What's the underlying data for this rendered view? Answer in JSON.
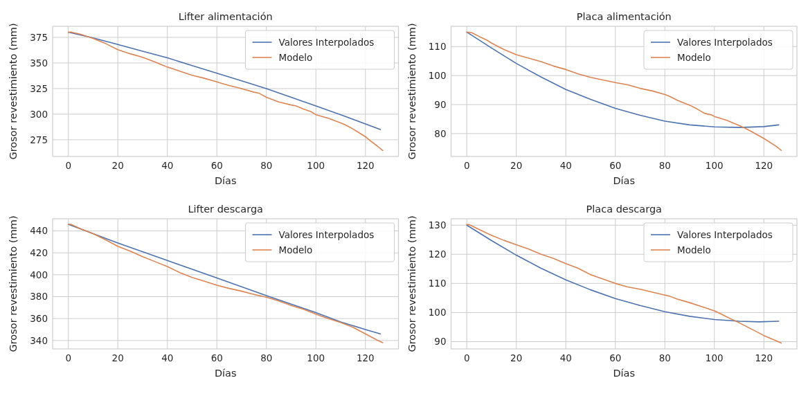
{
  "chart_data": [
    {
      "type": "line",
      "title": "Lifter alimentación",
      "xlabel": "Días",
      "ylabel": "Grosor revestimiento (mm)",
      "xlim": [
        -6.35,
        133.35
      ],
      "ylim": [
        258.7,
        385.8
      ],
      "xticks": [
        0,
        20,
        40,
        60,
        80,
        100,
        120
      ],
      "yticks": [
        275,
        300,
        325,
        350,
        375
      ],
      "grid": true,
      "legend": "top right",
      "series": [
        {
          "name": "Valores Interpolados",
          "color": "#4c72b0",
          "x": [
            0,
            10,
            20,
            30,
            40,
            50,
            60,
            70,
            80,
            90,
            100,
            110,
            120,
            126
          ],
          "values": [
            380,
            374.5,
            368,
            361.5,
            355,
            347.5,
            340,
            332.5,
            325,
            316.5,
            308,
            299.5,
            290.5,
            285
          ]
        },
        {
          "name": "Modelo",
          "color": "#dd8452",
          "x": [
            0,
            1,
            5,
            10,
            15,
            20,
            25,
            30,
            35,
            38,
            40,
            42,
            45,
            50,
            55,
            60,
            62,
            65,
            70,
            75,
            77,
            80,
            85,
            90,
            92,
            95,
            98,
            100,
            105,
            110,
            112,
            115,
            118,
            120,
            122,
            125,
            127
          ],
          "values": [
            380,
            380.2,
            378,
            374,
            369,
            363,
            359,
            355.5,
            351,
            348,
            346,
            344.5,
            342,
            338,
            335,
            331.5,
            330,
            328,
            325,
            321.5,
            320.5,
            316.5,
            312,
            309,
            308,
            305,
            302.5,
            299.5,
            296,
            291.5,
            289.5,
            285.5,
            281,
            278,
            274,
            268.5,
            264.5
          ]
        }
      ]
    },
    {
      "type": "line",
      "title": "Placa alimentación",
      "xlabel": "Días",
      "ylabel": "Grosor revestimiento (mm)",
      "xlim": [
        -6.35,
        133.35
      ],
      "ylim": [
        72.1,
        117.0
      ],
      "xticks": [
        0,
        20,
        40,
        60,
        80,
        100,
        120
      ],
      "yticks": [
        80,
        90,
        100,
        110
      ],
      "grid": true,
      "legend": "top right",
      "series": [
        {
          "name": "Valores Interpolados",
          "color": "#4c72b0",
          "x": [
            0,
            10,
            20,
            30,
            40,
            50,
            60,
            70,
            80,
            90,
            100,
            110,
            120,
            126
          ],
          "values": [
            115,
            109.5,
            104.2,
            99.5,
            95.2,
            91.8,
            88.7,
            86.3,
            84.3,
            83,
            82.3,
            82.1,
            82.4,
            83
          ]
        },
        {
          "name": "Modelo",
          "color": "#dd8452",
          "x": [
            0,
            2,
            5,
            8,
            10,
            15,
            20,
            25,
            30,
            35,
            40,
            45,
            50,
            55,
            60,
            65,
            70,
            75,
            80,
            82,
            85,
            90,
            93,
            96,
            99,
            100,
            105,
            110,
            112,
            115,
            120,
            125,
            127
          ],
          "values": [
            115,
            114.8,
            113.5,
            112.3,
            111.2,
            109,
            107.2,
            106,
            104.8,
            103.3,
            102.1,
            100.6,
            99.4,
            98.5,
            97.6,
            96.8,
            95.6,
            94.7,
            93.5,
            92.8,
            91.5,
            89.8,
            88.5,
            87,
            86.4,
            85.9,
            84.6,
            82.8,
            82,
            80.7,
            78.3,
            75.6,
            74.2
          ]
        }
      ]
    },
    {
      "type": "line",
      "title": "Lifter descarga",
      "xlabel": "Días",
      "ylabel": "Grosor revestimiento (mm)",
      "xlim": [
        -6.35,
        133.35
      ],
      "ylim": [
        332.3,
        451.1
      ],
      "xticks": [
        0,
        20,
        40,
        60,
        80,
        100,
        120
      ],
      "yticks": [
        340,
        360,
        380,
        400,
        420,
        440
      ],
      "grid": true,
      "legend": "top right",
      "series": [
        {
          "name": "Valores Interpolados",
          "color": "#4c72b0",
          "x": [
            0,
            20,
            40,
            60,
            80,
            100,
            110,
            120,
            126
          ],
          "values": [
            446,
            429,
            413,
            397,
            381,
            365.5,
            357,
            350,
            346
          ]
        },
        {
          "name": "Modelo",
          "color": "#dd8452",
          "x": [
            0,
            1,
            5,
            10,
            15,
            20,
            25,
            30,
            35,
            40,
            45,
            50,
            55,
            60,
            65,
            70,
            75,
            80,
            85,
            90,
            95,
            100,
            105,
            110,
            115,
            120,
            125,
            127
          ],
          "values": [
            446,
            446,
            442,
            437.5,
            432,
            426,
            421.5,
            416.5,
            412,
            407.5,
            402,
            397.5,
            394,
            390.5,
            387.5,
            385,
            382,
            379.5,
            376,
            372,
            368.5,
            364,
            360,
            356.5,
            352,
            346,
            340,
            338
          ]
        }
      ]
    },
    {
      "type": "line",
      "title": "Placa descarga",
      "xlabel": "Días",
      "ylabel": "Grosor revestimiento (mm)",
      "xlim": [
        -6.35,
        133.35
      ],
      "ylim": [
        87.5,
        132.2
      ],
      "xticks": [
        0,
        20,
        40,
        60,
        80,
        100,
        120
      ],
      "yticks": [
        90,
        100,
        110,
        120,
        130
      ],
      "grid": true,
      "legend": "top right",
      "series": [
        {
          "name": "Valores Interpolados",
          "color": "#4c72b0",
          "x": [
            0,
            10,
            20,
            30,
            40,
            50,
            60,
            70,
            80,
            90,
            100,
            110,
            118,
            126
          ],
          "values": [
            130,
            124.7,
            119.7,
            115.2,
            111.2,
            107.8,
            104.8,
            102.4,
            100.3,
            98.7,
            97.6,
            97,
            96.8,
            97
          ]
        },
        {
          "name": "Modelo",
          "color": "#dd8452",
          "x": [
            0,
            1,
            5,
            10,
            15,
            20,
            25,
            30,
            35,
            40,
            45,
            50,
            55,
            60,
            65,
            70,
            75,
            80,
            82,
            85,
            90,
            95,
            100,
            102,
            105,
            110,
            115,
            120,
            125,
            127
          ],
          "values": [
            130.2,
            130.2,
            128.5,
            126.5,
            124.8,
            123.3,
            121.8,
            120,
            118.6,
            116.8,
            115.2,
            113,
            111.5,
            110,
            108.8,
            108,
            107,
            106,
            105.6,
            104.6,
            103.4,
            102,
            100.6,
            99.8,
            98.5,
            96.5,
            94.3,
            92.1,
            90.3,
            89.5
          ]
        }
      ]
    }
  ]
}
